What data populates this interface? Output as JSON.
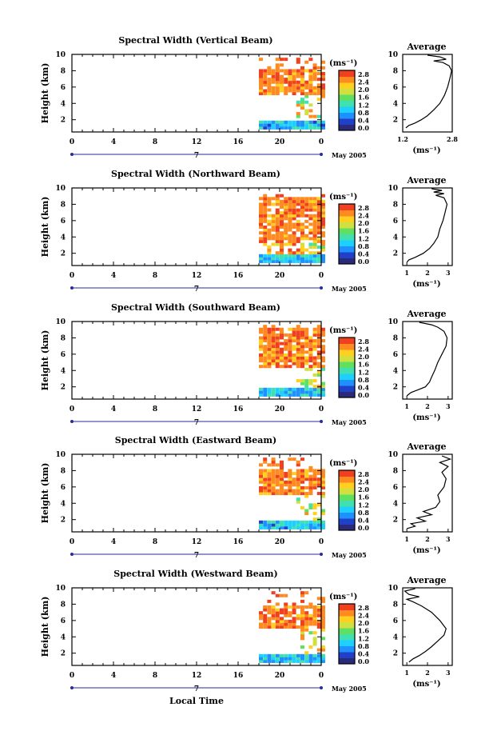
{
  "chart_data": [
    {
      "type": "heatmap",
      "title": "Spectral Width (Vertical Beam)",
      "xlabel": "",
      "ylabel": "Height (km)",
      "xlim": [
        0,
        24
      ],
      "ylim": [
        0.5,
        10
      ],
      "xticks": [
        "0",
        "4",
        "8",
        "12",
        "16",
        "20",
        "0"
      ],
      "yticks": [
        "2",
        "4",
        "6",
        "8",
        "10"
      ],
      "date_label": "7",
      "month_label": "May 2005",
      "colorbar": {
        "unit": "(ms⁻¹)",
        "ticks": [
          "0.0",
          "0.4",
          "0.8",
          "1.2",
          "1.6",
          "2.0",
          "2.4",
          "2.8"
        ]
      },
      "data_region": {
        "x": [
          18,
          24
        ],
        "upper_band": [
          5,
          8
        ],
        "low_band": [
          0.8,
          1.5
        ]
      },
      "profile": {
        "title": "Average",
        "xlabel": "(ms⁻¹)",
        "xticks": [
          "1.2",
          "2.8"
        ],
        "xlim": [
          1.2,
          2.8
        ],
        "points": [
          [
            1.3,
            1.0
          ],
          [
            1.4,
            1.3
          ],
          [
            1.6,
            1.6
          ],
          [
            1.8,
            2.0
          ],
          [
            2.0,
            2.5
          ],
          [
            2.2,
            3.2
          ],
          [
            2.4,
            4.0
          ],
          [
            2.55,
            5.0
          ],
          [
            2.65,
            6.0
          ],
          [
            2.72,
            7.0
          ],
          [
            2.78,
            8.0
          ],
          [
            2.7,
            8.6
          ],
          [
            2.5,
            9.0
          ],
          [
            2.2,
            9.2
          ],
          [
            2.6,
            9.4
          ],
          [
            2.4,
            9.7
          ],
          [
            2.0,
            9.9
          ]
        ]
      }
    },
    {
      "type": "heatmap",
      "title": "Spectral Width (Northward Beam)",
      "xlabel": "",
      "ylabel": "Height (km)",
      "xlim": [
        0,
        24
      ],
      "ylim": [
        0.5,
        10
      ],
      "xticks": [
        "0",
        "4",
        "8",
        "12",
        "16",
        "20",
        "0"
      ],
      "yticks": [
        "2",
        "4",
        "6",
        "8",
        "10"
      ],
      "date_label": "7",
      "month_label": "May 2005",
      "colorbar": {
        "unit": "(ms⁻¹)",
        "ticks": [
          "0.0",
          "0.4",
          "0.8",
          "1.2",
          "1.6",
          "2.0",
          "2.4",
          "2.8"
        ]
      },
      "data_region": {
        "x": [
          18,
          24
        ],
        "upper_band": [
          3,
          8.5
        ],
        "low_band": [
          0.8,
          1.5
        ]
      },
      "profile": {
        "title": "Average",
        "xlabel": "(ms⁻¹)",
        "xticks": [
          "1",
          "2",
          "3"
        ],
        "xlim": [
          0.8,
          3.2
        ],
        "points": [
          [
            1.0,
            0.9
          ],
          [
            1.1,
            1.2
          ],
          [
            1.4,
            1.5
          ],
          [
            1.8,
            2.0
          ],
          [
            2.1,
            2.6
          ],
          [
            2.3,
            3.2
          ],
          [
            2.5,
            4.0
          ],
          [
            2.6,
            5.0
          ],
          [
            2.75,
            6.0
          ],
          [
            2.85,
            7.0
          ],
          [
            2.95,
            8.0
          ],
          [
            2.8,
            8.8
          ],
          [
            2.4,
            9.1
          ],
          [
            2.8,
            9.3
          ],
          [
            2.3,
            9.5
          ],
          [
            2.7,
            9.7
          ],
          [
            2.2,
            9.9
          ]
        ]
      }
    },
    {
      "type": "heatmap",
      "title": "Spectral Width (Southward Beam)",
      "xlabel": "",
      "ylabel": "Height (km)",
      "xlim": [
        0,
        24
      ],
      "ylim": [
        0.5,
        10
      ],
      "xticks": [
        "0",
        "4",
        "8",
        "12",
        "16",
        "20",
        "0"
      ],
      "yticks": [
        "2",
        "4",
        "6",
        "8",
        "10"
      ],
      "date_label": "7",
      "month_label": "May 2005",
      "colorbar": {
        "unit": "(ms⁻¹)",
        "ticks": [
          "0.0",
          "0.4",
          "0.8",
          "1.2",
          "1.6",
          "2.0",
          "2.4",
          "2.8"
        ]
      },
      "data_region": {
        "x": [
          18,
          24
        ],
        "upper_band": [
          4,
          9
        ],
        "low_band": [
          0.8,
          1.5
        ]
      },
      "profile": {
        "title": "Average",
        "xlabel": "(ms⁻¹)",
        "xticks": [
          "1",
          "2",
          "3"
        ],
        "xlim": [
          0.8,
          3.2
        ],
        "points": [
          [
            1.0,
            0.9
          ],
          [
            1.2,
            1.3
          ],
          [
            1.5,
            1.6
          ],
          [
            1.9,
            2.0
          ],
          [
            2.1,
            2.6
          ],
          [
            2.2,
            3.2
          ],
          [
            2.35,
            4.0
          ],
          [
            2.5,
            5.0
          ],
          [
            2.7,
            6.0
          ],
          [
            2.9,
            7.0
          ],
          [
            2.95,
            8.0
          ],
          [
            2.8,
            8.8
          ],
          [
            2.5,
            9.3
          ],
          [
            2.2,
            9.6
          ],
          [
            1.6,
            9.9
          ]
        ]
      }
    },
    {
      "type": "heatmap",
      "title": "Spectral Width (Eastward Beam)",
      "xlabel": "",
      "ylabel": "Height (km)",
      "xlim": [
        0,
        24
      ],
      "ylim": [
        0.5,
        10
      ],
      "xticks": [
        "0",
        "4",
        "8",
        "12",
        "16",
        "20",
        "0"
      ],
      "yticks": [
        "2",
        "4",
        "6",
        "8",
        "10"
      ],
      "date_label": "7",
      "month_label": "May 2005",
      "colorbar": {
        "unit": "(ms⁻¹)",
        "ticks": [
          "0.0",
          "0.4",
          "0.8",
          "1.2",
          "1.6",
          "2.0",
          "2.4",
          "2.8"
        ]
      },
      "data_region": {
        "x": [
          18,
          24
        ],
        "upper_band": [
          5,
          8
        ],
        "low_band": [
          0.8,
          1.5
        ]
      },
      "profile": {
        "title": "Average",
        "xlabel": "(ms⁻¹)",
        "xticks": [
          "1",
          "2",
          "3"
        ],
        "xlim": [
          0.8,
          3.2
        ],
        "points": [
          [
            1.0,
            0.9
          ],
          [
            1.4,
            1.2
          ],
          [
            1.2,
            1.5
          ],
          [
            1.9,
            1.8
          ],
          [
            1.5,
            2.2
          ],
          [
            2.2,
            2.6
          ],
          [
            1.8,
            3.0
          ],
          [
            2.4,
            3.5
          ],
          [
            2.6,
            4.2
          ],
          [
            2.5,
            5.0
          ],
          [
            2.8,
            6.0
          ],
          [
            2.9,
            7.0
          ],
          [
            2.7,
            7.8
          ],
          [
            3.0,
            8.5
          ],
          [
            2.6,
            9.0
          ],
          [
            3.1,
            9.4
          ],
          [
            2.7,
            9.8
          ]
        ]
      }
    },
    {
      "type": "heatmap",
      "title": "Spectral Width (Westward Beam)",
      "xlabel": "Local Time",
      "ylabel": "Height (km)",
      "xlim": [
        0,
        24
      ],
      "ylim": [
        0.5,
        10
      ],
      "xticks": [
        "0",
        "4",
        "8",
        "12",
        "16",
        "20",
        "0"
      ],
      "yticks": [
        "2",
        "4",
        "6",
        "8",
        "10"
      ],
      "date_label": "7",
      "month_label": "May 2005",
      "colorbar": {
        "unit": "(ms⁻¹)",
        "ticks": [
          "0.0",
          "0.4",
          "0.8",
          "1.2",
          "1.6",
          "2.0",
          "2.4",
          "2.8"
        ]
      },
      "data_region": {
        "x": [
          18,
          24
        ],
        "upper_band": [
          5,
          7.5
        ],
        "low_band": [
          0.8,
          1.5
        ]
      },
      "profile": {
        "title": "Average",
        "xlabel": "(ms⁻¹)",
        "xticks": [
          "1",
          "2",
          "3"
        ],
        "xlim": [
          0.8,
          3.2
        ],
        "points": [
          [
            1.1,
            0.9
          ],
          [
            1.3,
            1.3
          ],
          [
            1.6,
            1.7
          ],
          [
            1.9,
            2.2
          ],
          [
            2.2,
            2.8
          ],
          [
            2.5,
            3.5
          ],
          [
            2.8,
            4.2
          ],
          [
            2.9,
            5.0
          ],
          [
            2.6,
            6.0
          ],
          [
            2.2,
            7.0
          ],
          [
            1.7,
            7.8
          ],
          [
            1.3,
            8.3
          ],
          [
            1.0,
            8.6
          ],
          [
            1.6,
            8.9
          ],
          [
            1.1,
            9.2
          ],
          [
            0.9,
            9.6
          ],
          [
            1.4,
            9.9
          ]
        ]
      }
    }
  ]
}
